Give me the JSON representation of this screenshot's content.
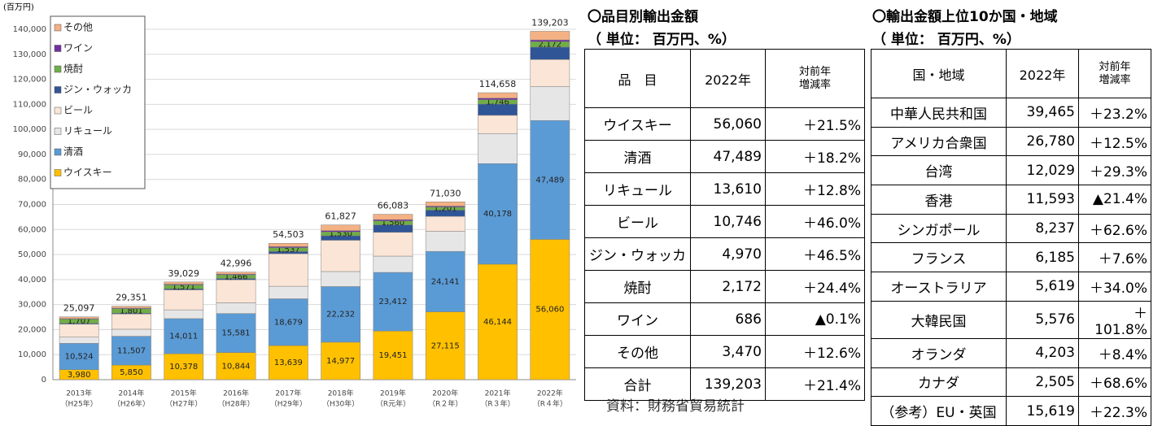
{
  "chart_data": {
    "type": "bar",
    "stacked": true,
    "y_unit": "(百万円)",
    "categories": [
      "2013年",
      "2014年",
      "2015年",
      "2016年",
      "2017年",
      "2018年",
      "2019年",
      "2020年",
      "2021年",
      "2022年"
    ],
    "category_eras": [
      "（H25年）",
      "（H26年）",
      "（H27年）",
      "（H28年）",
      "（H29年）",
      "（H30年）",
      "（R元年）",
      "（R２年）",
      "（R３年）",
      "（R４年）"
    ],
    "series": [
      {
        "name": "ウイスキー",
        "color": "#ffc000",
        "values": [
          3980,
          5850,
          10378,
          10844,
          13639,
          14977,
          19451,
          27115,
          46144,
          56060
        ],
        "value_labels": [
          "3,980",
          "5,850",
          "10,378",
          "10,844",
          "13,639",
          "14,977",
          "19,451",
          "27,115",
          "46,144",
          "56,060"
        ]
      },
      {
        "name": "清酒",
        "color": "#5b9bd5",
        "values": [
          10524,
          11507,
          14011,
          15581,
          18679,
          22232,
          23412,
          24141,
          40178,
          47489
        ],
        "value_labels": [
          "10,524",
          "11,507",
          "14,011",
          "15,581",
          "18,679",
          "22,232",
          "23,412",
          "24,141",
          "40,178",
          "47,489"
        ]
      },
      {
        "name": "リキュール",
        "color": "#e7e6e6",
        "values": [
          2500,
          2800,
          3500,
          4300,
          5000,
          6000,
          6500,
          8000,
          12000,
          13610
        ]
      },
      {
        "name": "ビール",
        "color": "#fbe5d6",
        "values": [
          5200,
          6100,
          8000,
          9200,
          13000,
          12500,
          9500,
          6000,
          7300,
          10746
        ]
      },
      {
        "name": "ジン・ウォッカ",
        "color": "#2f5597",
        "values": [
          300,
          300,
          400,
          500,
          900,
          1800,
          3000,
          2500,
          4500,
          4970
        ]
      },
      {
        "name": "焼酎",
        "color": "#70ad47",
        "values": [
          1707,
          1801,
          1571,
          1466,
          1537,
          1530,
          1560,
          1201,
          1746,
          2172
        ],
        "value_labels": [
          "1,707",
          "1,801",
          "1,571",
          "1,466",
          "1,537",
          "1,530",
          "1,560",
          "1,201",
          "1,746",
          "2,172"
        ]
      },
      {
        "name": "ワイン",
        "color": "#7030a0",
        "values": [
          200,
          250,
          300,
          300,
          400,
          500,
          500,
          400,
          600,
          686
        ]
      },
      {
        "name": "その他",
        "color": "#f4b183",
        "values": [
          686,
          743,
          869,
          805,
          1348,
          2288,
          2160,
          1673,
          2190,
          3470
        ]
      }
    ],
    "totals": [
      25097,
      29351,
      39029,
      42996,
      54503,
      61827,
      66083,
      71030,
      114658,
      139203
    ],
    "total_labels": [
      "25,097",
      "29,351",
      "39,029",
      "42,996",
      "54,503",
      "61,827",
      "66,083",
      "71,030",
      "114,658",
      "139,203"
    ],
    "ylim": [
      0,
      140000
    ],
    "yticks": [
      0,
      {
        "value": 10000,
        "label": "10,000"
      },
      {
        "value": 20000,
        "label": "20,000"
      },
      {
        "value": 30000,
        "label": "30,000"
      },
      {
        "value": 40000,
        "label": "40,000"
      },
      {
        "value": 50000,
        "label": "50,000"
      },
      {
        "value": 60000,
        "label": "60,000"
      },
      {
        "value": 70000,
        "label": "70,000"
      },
      {
        "value": 80000,
        "label": "80,000"
      },
      {
        "value": 90000,
        "label": "90,000"
      },
      {
        "value": 100000,
        "label": "100,000"
      },
      {
        "value": 110000,
        "label": "110,000"
      },
      {
        "value": 120000,
        "label": "120,000"
      },
      {
        "value": 130000,
        "label": "130,000"
      },
      {
        "value": 140000,
        "label": "140,000"
      }
    ],
    "grid": true,
    "legend": "upper left"
  },
  "tables": [
    {
      "title": "〇品目別輸出金額",
      "unit": "（ 単位： 百万円、%）",
      "header": [
        "品　目",
        "2022年",
        "対前年\n増減率"
      ],
      "rows": [
        [
          "ウイスキー",
          "56,060",
          "＋21.5%"
        ],
        [
          "清酒",
          "47,489",
          "＋18.2%"
        ],
        [
          "リキュール",
          "13,610",
          "＋12.8%"
        ],
        [
          "ビール",
          "10,746",
          "＋46.0%"
        ],
        [
          "ジン・ウォッカ",
          "4,970",
          "＋46.5%"
        ],
        [
          "焼酎",
          "2,172",
          "＋24.4%"
        ],
        [
          "ワイン",
          "686",
          "▲0.1%"
        ],
        [
          "その他",
          "3,470",
          "＋12.6%"
        ],
        [
          "合計",
          "139,203",
          "＋21.4%"
        ]
      ]
    },
    {
      "title": "〇輸出金額上位10か国・地域",
      "unit": "（ 単位： 百万円、%）",
      "header": [
        "国・地域",
        "2022年",
        "対前年\n増減率"
      ],
      "rows": [
        [
          "中華人民共和国",
          "39,465",
          "＋23.2%"
        ],
        [
          "アメリカ合衆国",
          "26,780",
          "＋12.5%"
        ],
        [
          "台湾",
          "12,029",
          "＋29.3%"
        ],
        [
          "香港",
          "11,593",
          "▲21.4%"
        ],
        [
          "シンガポール",
          "8,237",
          "＋62.6%"
        ],
        [
          "フランス",
          "6,185",
          "＋7.6%"
        ],
        [
          "オーストラリア",
          "5,619",
          "＋34.0%"
        ],
        [
          "大韓民国",
          "5,576",
          "＋101.8%"
        ],
        [
          "オランダ",
          "4,203",
          "＋8.4%"
        ],
        [
          "カナダ",
          "2,505",
          "＋68.6%"
        ],
        [
          "（参考）EU・英国",
          "15,619",
          "＋22.3%"
        ]
      ]
    }
  ],
  "source": "資料：財務省貿易統計"
}
